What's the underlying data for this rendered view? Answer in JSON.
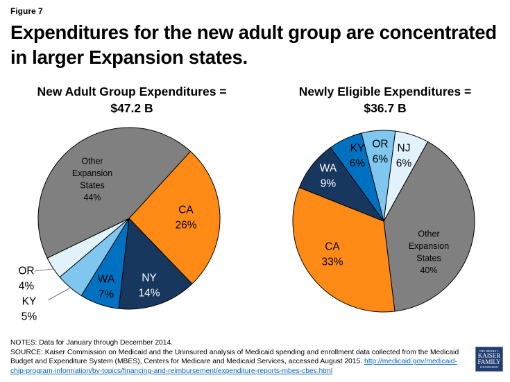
{
  "figure_label": "Figure 7",
  "title": "Expenditures for the new adult group are concentrated in larger Expansion states.",
  "colors": {
    "other": "#808080",
    "CA": "#FF8A15",
    "NY": "#17375E",
    "WA_left": "#0070C0",
    "KY_left": "#7FC7EE",
    "OR_left": "#E2F2FB",
    "WA_right": "#17375E",
    "KY_right": "#0070C0",
    "OR_right": "#7FC7EE",
    "NJ_right": "#E2F2FB"
  },
  "chart_data": [
    {
      "type": "pie",
      "title_line1": "New Adult Group Expenditures =",
      "title_line2": "$47.2 B",
      "unit": "%",
      "slices": [
        {
          "label": "CA",
          "value": 26,
          "color": "#FF8A15",
          "text_color": "#000000"
        },
        {
          "label": "NY",
          "value": 14,
          "color": "#17375E",
          "text_color": "#ffffff"
        },
        {
          "label": "WA",
          "value": 7,
          "color": "#0070C0",
          "text_color": "#000000"
        },
        {
          "label": "KY",
          "value": 5,
          "color": "#7FC7EE",
          "text_color": "#000000"
        },
        {
          "label": "OR",
          "value": 4,
          "color": "#E2F2FB",
          "text_color": "#000000"
        },
        {
          "label": "Other Expansion States",
          "value": 44,
          "color": "#808080",
          "text_color": "#000000"
        }
      ]
    },
    {
      "type": "pie",
      "title_line1": "Newly Eligible Expenditures =",
      "title_line2": "$36.7 B",
      "unit": "%",
      "slices": [
        {
          "label": "Other Expansion States",
          "value": 40,
          "color": "#808080",
          "text_color": "#000000"
        },
        {
          "label": "CA",
          "value": 33,
          "color": "#FF8A15",
          "text_color": "#000000"
        },
        {
          "label": "WA",
          "value": 9,
          "color": "#17375E",
          "text_color": "#ffffff"
        },
        {
          "label": "KY",
          "value": 6,
          "color": "#0070C0",
          "text_color": "#000000"
        },
        {
          "label": "OR",
          "value": 6,
          "color": "#7FC7EE",
          "text_color": "#000000"
        },
        {
          "label": "NJ",
          "value": 6,
          "color": "#E2F2FB",
          "text_color": "#000000"
        }
      ]
    }
  ],
  "footer": {
    "notes": "NOTES: Data for January through December 2014.",
    "source": "SOURCE: Kaiser Commission on Medicaid and the Uninsured analysis of Medicaid spending and enrollment data collected from the Medicaid Budget and Expenditure System (MBES), Centers for Medicare and Medicaid Services, accessed August 2015. ",
    "link": "http://medicaid.gov/medicaid-chip-program-information/by-topics/financing-and-reimbursement/expenditure-reports-mbes-cbes.html"
  },
  "logo": {
    "line1": "THE HENRY J.",
    "line2": "KAISER",
    "line3": "FAMILY",
    "line4": "FOUNDATION"
  }
}
